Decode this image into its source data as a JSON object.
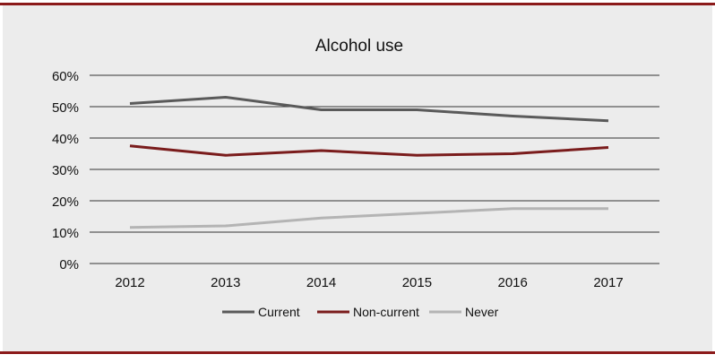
{
  "chart_data": {
    "type": "line",
    "title": "Alcohol use",
    "xlabel": "",
    "ylabel": "",
    "categories": [
      "2012",
      "2013",
      "2014",
      "2015",
      "2016",
      "2017"
    ],
    "ylim": [
      0,
      60
    ],
    "yticks": [
      0,
      10,
      20,
      30,
      40,
      50,
      60
    ],
    "ytick_labels": [
      "0%",
      "10%",
      "20%",
      "30%",
      "40%",
      "50%",
      "60%"
    ],
    "grid": true,
    "legend_position": "bottom-center",
    "series": [
      {
        "name": "Current",
        "color": "#5a5a5a",
        "values": [
          51,
          53,
          49,
          49,
          47,
          45.5
        ]
      },
      {
        "name": "Non-current",
        "color": "#7a1c1c",
        "values": [
          37.5,
          34.5,
          36,
          34.5,
          35,
          37
        ]
      },
      {
        "name": "Never",
        "color": "#b4b4b4",
        "values": [
          11.5,
          12,
          14.5,
          16,
          17.5,
          17.5
        ]
      }
    ]
  },
  "colors": {
    "frame_border": "#8b1a1a",
    "panel_background": "#ececec",
    "gridline": "#333333"
  }
}
